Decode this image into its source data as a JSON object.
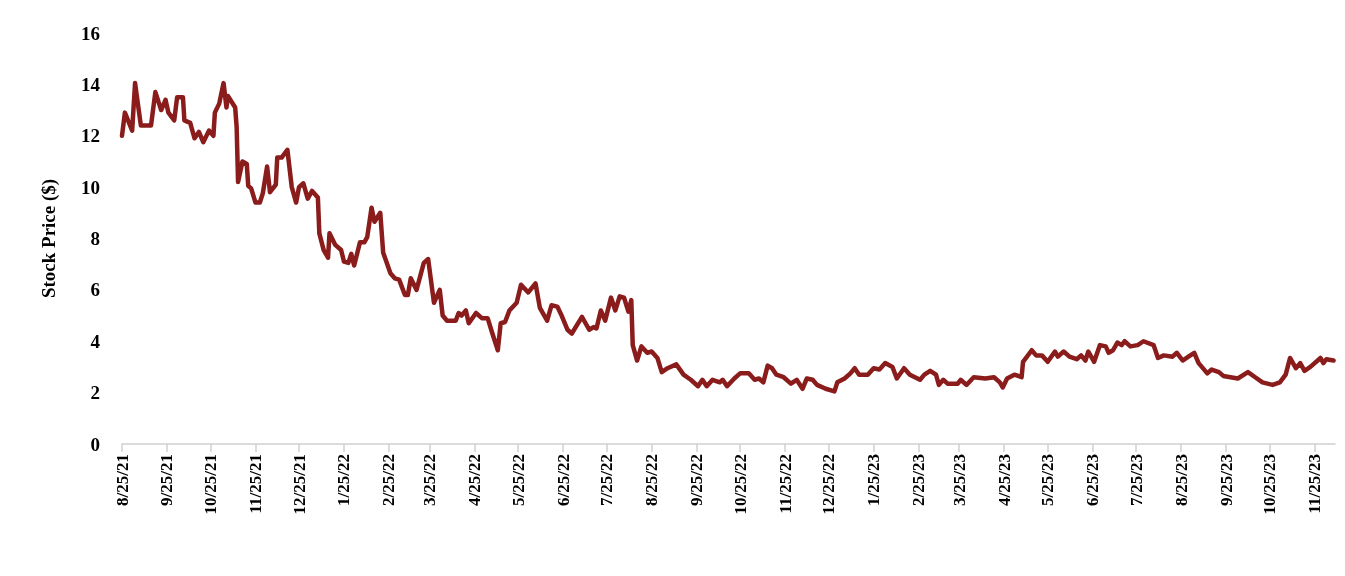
{
  "chart_data": {
    "type": "line",
    "ylabel": "Stock Price ($)",
    "xlim": [
      "2021-08-25",
      "2023-12-09"
    ],
    "xticks": [
      {
        "value": "2021-08-25",
        "label": "8/25/21"
      },
      {
        "value": "2021-09-25",
        "label": "9/25/21"
      },
      {
        "value": "2021-10-25",
        "label": "10/25/21"
      },
      {
        "value": "2021-11-25",
        "label": "11/25/21"
      },
      {
        "value": "2021-12-25",
        "label": "12/25/21"
      },
      {
        "value": "2022-01-25",
        "label": "1/25/22"
      },
      {
        "value": "2022-02-25",
        "label": "2/25/22"
      },
      {
        "value": "2022-03-25",
        "label": "3/25/22"
      },
      {
        "value": "2022-04-25",
        "label": "4/25/22"
      },
      {
        "value": "2022-05-25",
        "label": "5/25/22"
      },
      {
        "value": "2022-06-25",
        "label": "6/25/22"
      },
      {
        "value": "2022-07-25",
        "label": "7/25/22"
      },
      {
        "value": "2022-08-25",
        "label": "8/25/22"
      },
      {
        "value": "2022-09-25",
        "label": "9/25/22"
      },
      {
        "value": "2022-10-25",
        "label": "10/25/22"
      },
      {
        "value": "2022-11-25",
        "label": "11/25/22"
      },
      {
        "value": "2022-12-25",
        "label": "12/25/22"
      },
      {
        "value": "2023-01-25",
        "label": "1/25/23"
      },
      {
        "value": "2023-02-25",
        "label": "2/25/23"
      },
      {
        "value": "2023-03-25",
        "label": "3/25/23"
      },
      {
        "value": "2023-04-25",
        "label": "4/25/23"
      },
      {
        "value": "2023-05-25",
        "label": "5/25/23"
      },
      {
        "value": "2023-06-25",
        "label": "6/25/23"
      },
      {
        "value": "2023-07-25",
        "label": "7/25/23"
      },
      {
        "value": "2023-08-25",
        "label": "8/25/23"
      },
      {
        "value": "2023-09-25",
        "label": "9/25/23"
      },
      {
        "value": "2023-10-25",
        "label": "10/25/23"
      },
      {
        "value": "2023-11-25",
        "label": "11/25/23"
      }
    ],
    "ylim": [
      0,
      16
    ],
    "yticks": [
      0,
      2,
      4,
      6,
      8,
      10,
      12,
      14,
      16
    ],
    "grid": false,
    "marker": "none",
    "line_style": "solid",
    "series": [
      {
        "color": "#8b1c1c",
        "x": [
          "2021-08-25",
          "2021-08-27",
          "2021-09-01",
          "2021-09-03",
          "2021-09-07",
          "2021-09-14",
          "2021-09-17",
          "2021-09-21",
          "2021-09-24",
          "2021-09-26",
          "2021-09-30",
          "2021-10-02",
          "2021-10-06",
          "2021-10-07",
          "2021-10-11",
          "2021-10-14",
          "2021-10-17",
          "2021-10-20",
          "2021-10-24",
          "2021-10-27",
          "2021-10-28",
          "2021-10-31",
          "2021-11-03",
          "2021-11-05",
          "2021-11-06",
          "2021-11-11",
          "2021-11-12",
          "2021-11-13",
          "2021-11-16",
          "2021-11-19",
          "2021-11-20",
          "2021-11-22",
          "2021-11-25",
          "2021-11-28",
          "2021-11-30",
          "2021-12-03",
          "2021-12-05",
          "2021-12-09",
          "2021-12-10",
          "2021-12-13",
          "2021-12-17",
          "2021-12-20",
          "2021-12-23",
          "2021-12-25",
          "2021-12-28",
          "2021-12-31",
          "2022-01-03",
          "2022-01-07",
          "2022-01-08",
          "2022-01-11",
          "2022-01-14",
          "2022-01-15",
          "2022-01-19",
          "2022-01-23",
          "2022-01-25",
          "2022-01-28",
          "2022-01-30",
          "2022-02-01",
          "2022-02-05",
          "2022-02-08",
          "2022-02-10",
          "2022-02-13",
          "2022-02-15",
          "2022-02-19",
          "2022-02-21",
          "2022-02-26",
          "2022-03-01",
          "2022-03-04",
          "2022-03-08",
          "2022-03-10",
          "2022-03-12",
          "2022-03-16",
          "2022-03-21",
          "2022-03-24",
          "2022-03-28",
          "2022-04-01",
          "2022-04-03",
          "2022-04-06",
          "2022-04-12",
          "2022-04-14",
          "2022-04-16",
          "2022-04-19",
          "2022-04-21",
          "2022-04-26",
          "2022-04-30",
          "2022-05-04",
          "2022-05-07",
          "2022-05-11",
          "2022-05-13",
          "2022-05-16",
          "2022-05-19",
          "2022-05-24",
          "2022-05-27",
          "2022-06-01",
          "2022-06-06",
          "2022-06-09",
          "2022-06-14",
          "2022-06-17",
          "2022-06-21",
          "2022-06-24",
          "2022-06-28",
          "2022-07-01",
          "2022-07-08",
          "2022-07-10",
          "2022-07-13",
          "2022-07-16",
          "2022-07-18",
          "2022-07-21",
          "2022-07-24",
          "2022-07-28",
          "2022-07-31",
          "2022-08-03",
          "2022-08-06",
          "2022-08-09",
          "2022-08-11",
          "2022-08-12",
          "2022-08-15",
          "2022-08-18",
          "2022-08-22",
          "2022-08-25",
          "2022-08-29",
          "2022-09-01",
          "2022-09-05",
          "2022-09-11",
          "2022-09-16",
          "2022-09-21",
          "2022-09-26",
          "2022-09-29",
          "2022-10-02",
          "2022-10-06",
          "2022-10-11",
          "2022-10-13",
          "2022-10-16",
          "2022-10-21",
          "2022-10-25",
          "2022-10-31",
          "2022-11-04",
          "2022-11-07",
          "2022-11-10",
          "2022-11-13",
          "2022-11-16",
          "2022-11-19",
          "2022-11-24",
          "2022-11-29",
          "2022-12-03",
          "2022-12-07",
          "2022-12-10",
          "2022-12-14",
          "2022-12-17",
          "2022-12-23",
          "2022-12-29",
          "2022-12-31",
          "2023-01-05",
          "2023-01-09",
          "2023-01-12",
          "2023-01-15",
          "2023-01-21",
          "2023-01-25",
          "2023-01-29",
          "2023-02-02",
          "2023-02-07",
          "2023-02-10",
          "2023-02-15",
          "2023-02-19",
          "2023-02-26",
          "2023-03-01",
          "2023-03-05",
          "2023-03-09",
          "2023-03-11",
          "2023-03-14",
          "2023-03-17",
          "2023-03-24",
          "2023-03-26",
          "2023-03-30",
          "2023-04-04",
          "2023-04-12",
          "2023-04-18",
          "2023-04-22",
          "2023-04-24",
          "2023-04-27",
          "2023-05-02",
          "2023-05-07",
          "2023-05-08",
          "2023-05-14",
          "2023-05-17",
          "2023-05-21",
          "2023-05-25",
          "2023-05-30",
          "2023-06-01",
          "2023-06-05",
          "2023-06-09",
          "2023-06-14",
          "2023-06-17",
          "2023-06-20",
          "2023-06-22",
          "2023-06-26",
          "2023-06-30",
          "2023-07-04",
          "2023-07-06",
          "2023-07-09",
          "2023-07-12",
          "2023-07-15",
          "2023-07-17",
          "2023-07-21",
          "2023-07-26",
          "2023-07-30",
          "2023-08-06",
          "2023-08-09",
          "2023-08-13",
          "2023-08-19",
          "2023-08-22",
          "2023-08-26",
          "2023-08-30",
          "2023-09-03",
          "2023-09-06",
          "2023-09-12",
          "2023-09-15",
          "2023-09-20",
          "2023-09-23",
          "2023-10-03",
          "2023-10-10",
          "2023-10-15",
          "2023-10-20",
          "2023-10-27",
          "2023-11-01",
          "2023-11-05",
          "2023-11-08",
          "2023-11-12",
          "2023-11-15",
          "2023-11-18",
          "2023-11-22",
          "2023-11-29",
          "2023-12-01",
          "2023-12-03",
          "2023-12-08"
        ],
        "values": [
          12.0,
          12.9,
          12.2,
          14.05,
          12.4,
          12.4,
          13.7,
          13.0,
          13.4,
          12.9,
          12.6,
          13.5,
          13.5,
          12.6,
          12.5,
          11.9,
          12.15,
          11.75,
          12.2,
          12.0,
          12.9,
          13.25,
          14.05,
          13.1,
          13.55,
          13.1,
          12.35,
          10.2,
          11.0,
          10.9,
          10.05,
          9.95,
          9.4,
          9.4,
          9.75,
          10.8,
          9.8,
          10.1,
          11.15,
          11.15,
          11.45,
          10.0,
          9.4,
          10.0,
          10.15,
          9.55,
          9.85,
          9.6,
          8.2,
          7.55,
          7.25,
          8.2,
          7.75,
          7.55,
          7.1,
          7.05,
          7.4,
          6.95,
          7.85,
          7.85,
          8.05,
          9.2,
          8.65,
          9.0,
          7.45,
          6.65,
          6.45,
          6.4,
          5.8,
          5.8,
          6.45,
          6.0,
          7.05,
          7.2,
          5.5,
          6.0,
          5.0,
          4.8,
          4.8,
          5.1,
          5.0,
          5.2,
          4.7,
          5.1,
          4.9,
          4.9,
          4.35,
          3.65,
          4.7,
          4.75,
          5.2,
          5.5,
          6.2,
          5.9,
          6.25,
          5.3,
          4.8,
          5.4,
          5.35,
          5.0,
          4.45,
          4.3,
          4.95,
          4.75,
          4.45,
          4.55,
          4.5,
          5.2,
          4.8,
          5.7,
          5.2,
          5.75,
          5.7,
          5.15,
          5.6,
          3.85,
          3.25,
          3.8,
          3.55,
          3.6,
          3.35,
          2.8,
          2.95,
          3.1,
          2.7,
          2.5,
          2.25,
          2.5,
          2.25,
          2.5,
          2.4,
          2.5,
          2.25,
          2.55,
          2.75,
          2.75,
          2.5,
          2.55,
          2.4,
          3.05,
          2.95,
          2.7,
          2.6,
          2.35,
          2.5,
          2.15,
          2.55,
          2.5,
          2.3,
          2.15,
          2.05,
          2.4,
          2.55,
          2.75,
          2.95,
          2.7,
          2.7,
          2.95,
          2.9,
          3.15,
          3.0,
          2.55,
          2.95,
          2.7,
          2.5,
          2.7,
          2.85,
          2.7,
          2.3,
          2.5,
          2.35,
          2.35,
          2.5,
          2.3,
          2.6,
          2.55,
          2.6,
          2.4,
          2.2,
          2.55,
          2.7,
          2.6,
          3.2,
          3.65,
          3.45,
          3.45,
          3.2,
          3.6,
          3.4,
          3.6,
          3.4,
          3.3,
          3.45,
          3.25,
          3.6,
          3.2,
          3.85,
          3.8,
          3.55,
          3.65,
          3.95,
          3.85,
          4.0,
          3.8,
          3.85,
          4.0,
          3.85,
          3.35,
          3.45,
          3.4,
          3.55,
          3.25,
          3.4,
          3.55,
          3.15,
          2.75,
          2.9,
          2.8,
          2.65,
          2.55,
          2.8,
          2.6,
          2.4,
          2.3,
          2.4,
          2.7,
          3.35,
          2.95,
          3.15,
          2.85,
          3.0,
          3.35,
          3.15,
          3.3,
          3.25
        ]
      }
    ]
  }
}
